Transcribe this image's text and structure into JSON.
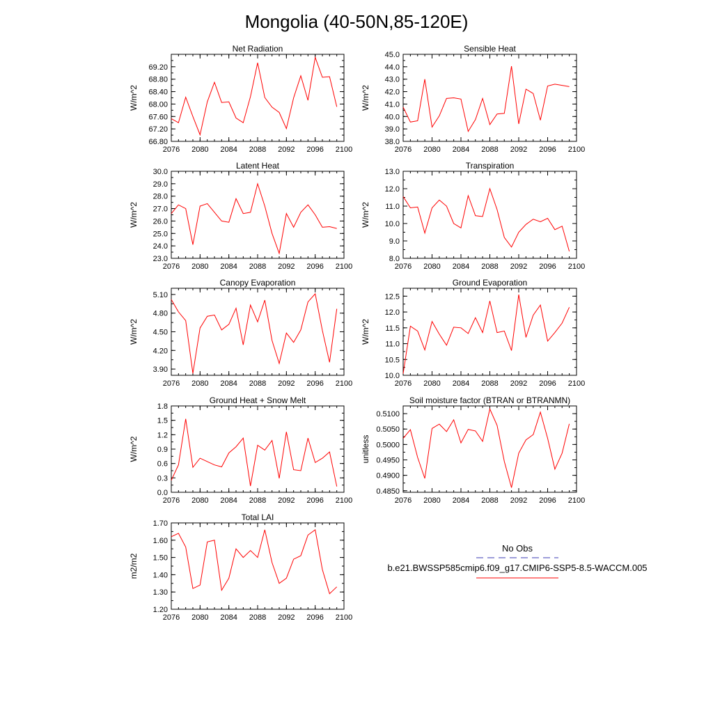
{
  "figure": {
    "title": "Mongolia (40-50N,85-120E)",
    "legend": {
      "obs_label": "No Obs",
      "obs_color": "#3b3bb3",
      "model_label": "b.e21.BWSSP585cmip6.f09_g17.CMIP6-SSP5-8.5-WACCM.005",
      "model_color": "#ff0000"
    }
  },
  "chart_data": [
    {
      "id": "net-radiation",
      "type": "line",
      "title": "Net Radiation",
      "ylabel": "W/m^2",
      "xlim": [
        2076,
        2100
      ],
      "ylim": [
        66.8,
        69.6
      ],
      "xticks": [
        2076,
        2080,
        2084,
        2088,
        2092,
        2096,
        2100
      ],
      "yticks": [
        66.8,
        67.2,
        67.6,
        68.0,
        68.4,
        68.8,
        69.2
      ],
      "ytick_labels": [
        "66.80",
        "67.20",
        "67.60",
        "68.00",
        "68.40",
        "68.80",
        "69.20"
      ],
      "x": [
        2076,
        2077,
        2078,
        2079,
        2080,
        2081,
        2082,
        2083,
        2084,
        2085,
        2086,
        2087,
        2088,
        2089,
        2090,
        2091,
        2092,
        2093,
        2094,
        2095,
        2096,
        2097,
        2098,
        2099
      ],
      "series": [
        {
          "name": "b.e21.BWSSP585cmip6.f09_g17.CMIP6-SSP5-8.5-WACCM.005",
          "values": [
            67.53,
            67.4,
            68.22,
            67.6,
            67.01,
            68.07,
            68.7,
            68.05,
            68.07,
            67.55,
            67.4,
            68.24,
            69.33,
            68.21,
            67.9,
            67.73,
            67.21,
            68.2,
            68.91,
            68.12,
            69.5,
            68.86,
            68.88,
            67.91
          ]
        }
      ]
    },
    {
      "id": "sensible-heat",
      "type": "line",
      "title": "Sensible Heat",
      "ylabel": "W/m^2",
      "xlim": [
        2076,
        2100
      ],
      "ylim": [
        38.0,
        45.0
      ],
      "xticks": [
        2076,
        2080,
        2084,
        2088,
        2092,
        2096,
        2100
      ],
      "yticks": [
        38.0,
        39.0,
        40.0,
        41.0,
        42.0,
        43.0,
        44.0,
        45.0
      ],
      "ytick_labels": [
        "38.0",
        "39.0",
        "40.0",
        "41.0",
        "42.0",
        "43.0",
        "44.0",
        "45.0"
      ],
      "x": [
        2076,
        2077,
        2078,
        2079,
        2080,
        2081,
        2082,
        2083,
        2084,
        2085,
        2086,
        2087,
        2088,
        2089,
        2090,
        2091,
        2092,
        2093,
        2094,
        2095,
        2096,
        2097,
        2098,
        2099
      ],
      "series": [
        {
          "name": "b.e21.BWSSP585cmip6.f09_g17.CMIP6-SSP5-8.5-WACCM.005",
          "values": [
            40.75,
            39.55,
            39.65,
            43.0,
            39.15,
            40.05,
            41.45,
            41.5,
            41.4,
            38.8,
            39.75,
            41.45,
            39.35,
            40.2,
            40.25,
            44.05,
            39.4,
            42.2,
            41.85,
            39.7,
            42.45,
            42.6,
            42.5,
            42.4
          ]
        }
      ]
    },
    {
      "id": "latent-heat",
      "type": "line",
      "title": "Latent Heat",
      "ylabel": "W/m^2",
      "xlim": [
        2076,
        2100
      ],
      "ylim": [
        23.0,
        30.0
      ],
      "xticks": [
        2076,
        2080,
        2084,
        2088,
        2092,
        2096,
        2100
      ],
      "yticks": [
        23.0,
        24.0,
        25.0,
        26.0,
        27.0,
        28.0,
        29.0,
        30.0
      ],
      "ytick_labels": [
        "23.0",
        "24.0",
        "25.0",
        "26.0",
        "27.0",
        "28.0",
        "29.0",
        "30.0"
      ],
      "x": [
        2076,
        2077,
        2078,
        2079,
        2080,
        2081,
        2082,
        2083,
        2084,
        2085,
        2086,
        2087,
        2088,
        2089,
        2090,
        2091,
        2092,
        2093,
        2094,
        2095,
        2096,
        2097,
        2098,
        2099
      ],
      "series": [
        {
          "name": "b.e21.BWSSP585cmip6.f09_g17.CMIP6-SSP5-8.5-WACCM.005",
          "values": [
            26.6,
            27.3,
            27.0,
            24.1,
            27.2,
            27.4,
            26.7,
            26.0,
            25.9,
            27.8,
            26.6,
            26.7,
            29.0,
            27.2,
            25.0,
            23.4,
            26.6,
            25.5,
            26.7,
            27.3,
            26.5,
            25.5,
            25.55,
            25.4
          ]
        }
      ]
    },
    {
      "id": "transpiration",
      "type": "line",
      "title": "Transpiration",
      "ylabel": "W/m^2",
      "xlim": [
        2076,
        2100
      ],
      "ylim": [
        8.0,
        13.0
      ],
      "xticks": [
        2076,
        2080,
        2084,
        2088,
        2092,
        2096,
        2100
      ],
      "yticks": [
        8.0,
        9.0,
        10.0,
        11.0,
        12.0,
        13.0
      ],
      "ytick_labels": [
        "8.0",
        "9.0",
        "10.0",
        "11.0",
        "12.0",
        "13.0"
      ],
      "x": [
        2076,
        2077,
        2078,
        2079,
        2080,
        2081,
        2082,
        2083,
        2084,
        2085,
        2086,
        2087,
        2088,
        2089,
        2090,
        2091,
        2092,
        2093,
        2094,
        2095,
        2096,
        2097,
        2098,
        2099
      ],
      "series": [
        {
          "name": "b.e21.BWSSP585cmip6.f09_g17.CMIP6-SSP5-8.5-WACCM.005",
          "values": [
            11.55,
            10.9,
            10.95,
            9.45,
            10.9,
            11.35,
            11.0,
            10.0,
            9.75,
            11.6,
            10.45,
            10.4,
            12.0,
            10.8,
            9.2,
            8.65,
            9.5,
            9.95,
            10.25,
            10.1,
            10.3,
            9.65,
            9.85,
            8.4
          ]
        }
      ]
    },
    {
      "id": "canopy-evaporation",
      "type": "line",
      "title": "Canopy Evaporation",
      "ylabel": "W/m^2",
      "xlim": [
        2076,
        2100
      ],
      "ylim": [
        3.8,
        5.2
      ],
      "xticks": [
        2076,
        2080,
        2084,
        2088,
        2092,
        2096,
        2100
      ],
      "yticks": [
        3.9,
        4.2,
        4.5,
        4.8,
        5.1
      ],
      "ytick_labels": [
        "3.90",
        "4.20",
        "4.50",
        "4.80",
        "5.10"
      ],
      "x": [
        2076,
        2077,
        2078,
        2079,
        2080,
        2081,
        2082,
        2083,
        2084,
        2085,
        2086,
        2087,
        2088,
        2089,
        2090,
        2091,
        2092,
        2093,
        2094,
        2095,
        2096,
        2097,
        2098,
        2099
      ],
      "series": [
        {
          "name": "b.e21.BWSSP585cmip6.f09_g17.CMIP6-SSP5-8.5-WACCM.005",
          "values": [
            5.02,
            4.82,
            4.68,
            3.83,
            4.56,
            4.75,
            4.77,
            4.53,
            4.62,
            4.88,
            4.29,
            4.93,
            4.66,
            5.01,
            4.36,
            3.99,
            4.48,
            4.33,
            4.53,
            4.98,
            5.11,
            4.52,
            4.01,
            4.87
          ]
        }
      ]
    },
    {
      "id": "ground-evaporation",
      "type": "line",
      "title": "Ground Evaporation",
      "ylabel": "W/m^2",
      "xlim": [
        2076,
        2100
      ],
      "ylim": [
        10.0,
        12.75
      ],
      "xticks": [
        2076,
        2080,
        2084,
        2088,
        2092,
        2096,
        2100
      ],
      "yticks": [
        10.0,
        10.5,
        11.0,
        11.5,
        12.0,
        12.5
      ],
      "ytick_labels": [
        "10.0",
        "10.5",
        "11.0",
        "11.5",
        "12.0",
        "12.5"
      ],
      "x": [
        2076,
        2077,
        2078,
        2079,
        2080,
        2081,
        2082,
        2083,
        2084,
        2085,
        2086,
        2087,
        2088,
        2089,
        2090,
        2091,
        2092,
        2093,
        2094,
        2095,
        2096,
        2097,
        2098,
        2099
      ],
      "series": [
        {
          "name": "b.e21.BWSSP585cmip6.f09_g17.CMIP6-SSP5-8.5-WACCM.005",
          "values": [
            10.05,
            11.55,
            11.4,
            10.8,
            11.7,
            11.3,
            10.95,
            11.52,
            11.5,
            11.32,
            11.82,
            11.35,
            12.35,
            11.35,
            11.4,
            10.78,
            12.55,
            11.2,
            11.9,
            12.22,
            11.08,
            11.35,
            11.65,
            12.15
          ]
        }
      ]
    },
    {
      "id": "ground-heat-snow-melt",
      "type": "line",
      "title": "Ground Heat + Snow Melt",
      "ylabel": "W/m^2",
      "xlim": [
        2076,
        2100
      ],
      "ylim": [
        0.0,
        1.8
      ],
      "xticks": [
        2076,
        2080,
        2084,
        2088,
        2092,
        2096,
        2100
      ],
      "yticks": [
        0.0,
        0.3,
        0.6,
        0.9,
        1.2,
        1.5,
        1.8
      ],
      "ytick_labels": [
        "0.0",
        "0.3",
        "0.6",
        "0.9",
        "1.2",
        "1.5",
        "1.8"
      ],
      "x": [
        2076,
        2077,
        2078,
        2079,
        2080,
        2081,
        2082,
        2083,
        2084,
        2085,
        2086,
        2087,
        2088,
        2089,
        2090,
        2091,
        2092,
        2093,
        2094,
        2095,
        2096,
        2097,
        2098,
        2099
      ],
      "series": [
        {
          "name": "b.e21.BWSSP585cmip6.f09_g17.CMIP6-SSP5-8.5-WACCM.005",
          "values": [
            0.25,
            0.57,
            1.53,
            0.52,
            0.71,
            0.64,
            0.57,
            0.53,
            0.82,
            0.95,
            1.13,
            0.13,
            0.98,
            0.88,
            1.08,
            0.29,
            1.26,
            0.47,
            0.45,
            1.13,
            0.62,
            0.71,
            0.84,
            0.12
          ]
        }
      ]
    },
    {
      "id": "soil-moisture-factor",
      "type": "line",
      "title": "Soil moisture factor (BTRAN or BTRANMN)",
      "ylabel": "unitless",
      "xlim": [
        2076,
        2100
      ],
      "ylim": [
        0.4845,
        0.5125
      ],
      "xticks": [
        2076,
        2080,
        2084,
        2088,
        2092,
        2096,
        2100
      ],
      "yticks": [
        0.485,
        0.49,
        0.495,
        0.5,
        0.505,
        0.51
      ],
      "ytick_labels": [
        "0.4850",
        "0.4900",
        "0.4950",
        "0.5000",
        "0.5050",
        "0.5100"
      ],
      "x": [
        2076,
        2077,
        2078,
        2079,
        2080,
        2081,
        2082,
        2083,
        2084,
        2085,
        2086,
        2087,
        2088,
        2089,
        2090,
        2091,
        2092,
        2093,
        2094,
        2095,
        2096,
        2097,
        2098,
        2099
      ],
      "series": [
        {
          "name": "b.e21.BWSSP585cmip6.f09_g17.CMIP6-SSP5-8.5-WACCM.005",
          "values": [
            0.502,
            0.5048,
            0.4958,
            0.489,
            0.5052,
            0.5066,
            0.5042,
            0.508,
            0.5005,
            0.5049,
            0.5044,
            0.501,
            0.5115,
            0.5062,
            0.4945,
            0.486,
            0.4972,
            0.5015,
            0.5032,
            0.5105,
            0.502,
            0.492,
            0.4972,
            0.5067
          ]
        }
      ]
    },
    {
      "id": "total-lai",
      "type": "line",
      "title": "Total LAI",
      "ylabel": "m2/m2",
      "xlim": [
        2076,
        2100
      ],
      "ylim": [
        1.2,
        1.7
      ],
      "xticks": [
        2076,
        2080,
        2084,
        2088,
        2092,
        2096,
        2100
      ],
      "yticks": [
        1.2,
        1.3,
        1.4,
        1.5,
        1.6,
        1.7
      ],
      "ytick_labels": [
        "1.20",
        "1.30",
        "1.40",
        "1.50",
        "1.60",
        "1.70"
      ],
      "x": [
        2076,
        2077,
        2078,
        2079,
        2080,
        2081,
        2082,
        2083,
        2084,
        2085,
        2086,
        2087,
        2088,
        2089,
        2090,
        2091,
        2092,
        2093,
        2094,
        2095,
        2096,
        2097,
        2098,
        2099
      ],
      "series": [
        {
          "name": "b.e21.BWSSP585cmip6.f09_g17.CMIP6-SSP5-8.5-WACCM.005",
          "values": [
            1.62,
            1.64,
            1.56,
            1.32,
            1.34,
            1.59,
            1.6,
            1.31,
            1.38,
            1.55,
            1.5,
            1.54,
            1.5,
            1.66,
            1.47,
            1.35,
            1.38,
            1.49,
            1.51,
            1.63,
            1.66,
            1.43,
            1.29,
            1.33
          ]
        }
      ]
    }
  ]
}
